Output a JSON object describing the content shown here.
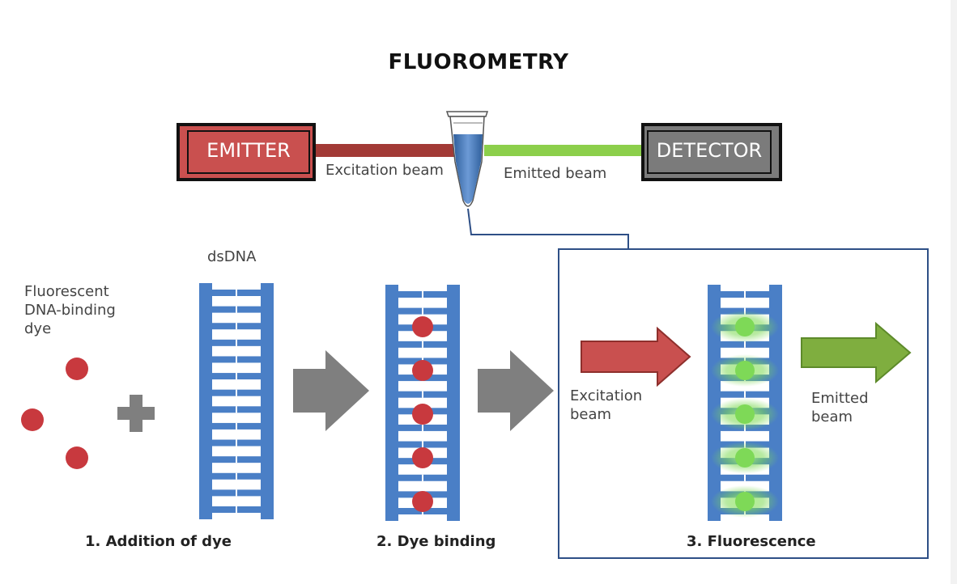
{
  "title": "FLUOROMETRY",
  "instrument": {
    "emitter": "EMITTER",
    "detector": "DETECTOR",
    "excitation_beam": "Excitation beam",
    "emitted_beam": "Emitted beam"
  },
  "steps": {
    "dsdna": "dsDNA",
    "dye_line1": "Fluorescent",
    "dye_line2": "DNA-binding",
    "dye_line3": "dye",
    "step1": "1. Addition of dye",
    "step2": "2. Dye binding",
    "step3": "3. Fluorescence",
    "excitation_line1": "Excitation",
    "excitation_line2": "beam",
    "emitted_line1": "Emitted",
    "emitted_line2": "beam"
  },
  "colors": {
    "emitter": "#c9504f",
    "excitation": "#a23a36",
    "emitted": "#8ccf4b",
    "detector": "#7b7b7b",
    "dna": "#4a7fc6",
    "dye": "#c8393e",
    "fluorescence": "#7ed957",
    "frame": "#2e4f86",
    "gray_arrow": "#7f7f7f"
  }
}
